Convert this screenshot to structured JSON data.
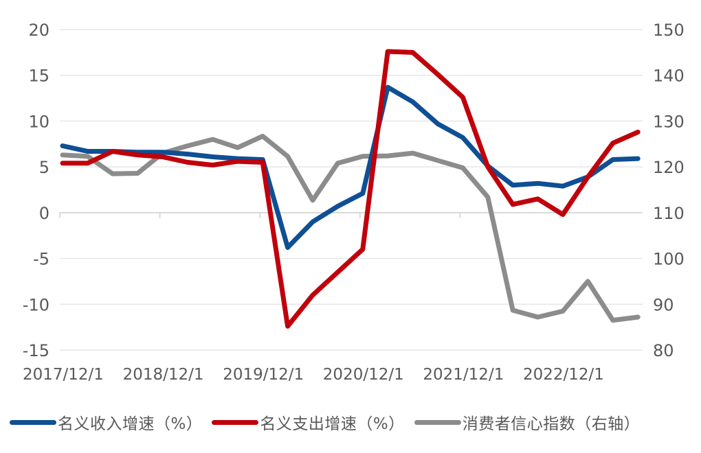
{
  "chart_data": {
    "type": "line",
    "title": "",
    "xlabel": "",
    "ylabel": "",
    "y2label": "",
    "x_tick_labels": [
      "2017/12/1",
      "2018/12/1",
      "2019/12/1",
      "2020/12/1",
      "2021/12/1",
      "2022/12/1"
    ],
    "x": [
      "2017/12",
      "2018/03",
      "2018/06",
      "2018/09",
      "2018/12",
      "2019/03",
      "2019/06",
      "2019/09",
      "2019/12",
      "2020/03",
      "2020/06",
      "2020/09",
      "2020/12",
      "2021/03",
      "2021/06",
      "2021/09",
      "2021/12",
      "2022/03",
      "2022/06",
      "2022/09",
      "2022/12",
      "2023/03",
      "2023/06",
      "2023/09"
    ],
    "ylim": [
      -15,
      20
    ],
    "yticks": [
      20,
      15,
      10,
      5,
      0,
      -5,
      -10,
      -15
    ],
    "y2lim": [
      80,
      150
    ],
    "y2ticks": [
      150,
      140,
      130,
      120,
      110,
      100,
      90,
      80
    ],
    "grid": true,
    "legend_position": "bottom",
    "series": [
      {
        "name": "名义收入增速（%）",
        "axis": "left",
        "color": "#0F4F94",
        "values": [
          7.3,
          6.7,
          6.7,
          6.6,
          6.6,
          6.4,
          6.1,
          5.9,
          5.8,
          -3.8,
          -1.0,
          0.7,
          2.1,
          13.7,
          12.1,
          9.7,
          8.2,
          5.1,
          3.0,
          3.2,
          2.9,
          3.9,
          5.8,
          5.9
        ]
      },
      {
        "name": "名义支出增速（%）",
        "axis": "left",
        "color": "#C0000B",
        "values": [
          5.4,
          5.4,
          6.7,
          6.3,
          6.1,
          5.5,
          5.2,
          5.6,
          5.5,
          -12.4,
          -9.0,
          -6.5,
          -4.0,
          17.6,
          17.5,
          15.1,
          12.6,
          5.0,
          0.9,
          1.5,
          -0.2,
          3.9,
          7.6,
          8.8
        ]
      },
      {
        "name": "消费者信心指数（右轴）",
        "axis": "right",
        "color": "#8C8C8C",
        "values": [
          122.6,
          122.3,
          118.5,
          118.6,
          123.0,
          124.6,
          126.0,
          124.2,
          126.7,
          122.3,
          112.7,
          120.8,
          122.3,
          122.4,
          123.0,
          121.4,
          119.8,
          113.4,
          88.7,
          87.2,
          88.5,
          95.0,
          86.5,
          87.2
        ]
      }
    ]
  },
  "legend": {
    "items": [
      {
        "label": "名义收入增速（%）",
        "color": "#0F4F94"
      },
      {
        "label": "名义支出增速（%）",
        "color": "#C0000B"
      },
      {
        "label": "消费者信心指数（右轴）",
        "color": "#8C8C8C"
      }
    ]
  }
}
